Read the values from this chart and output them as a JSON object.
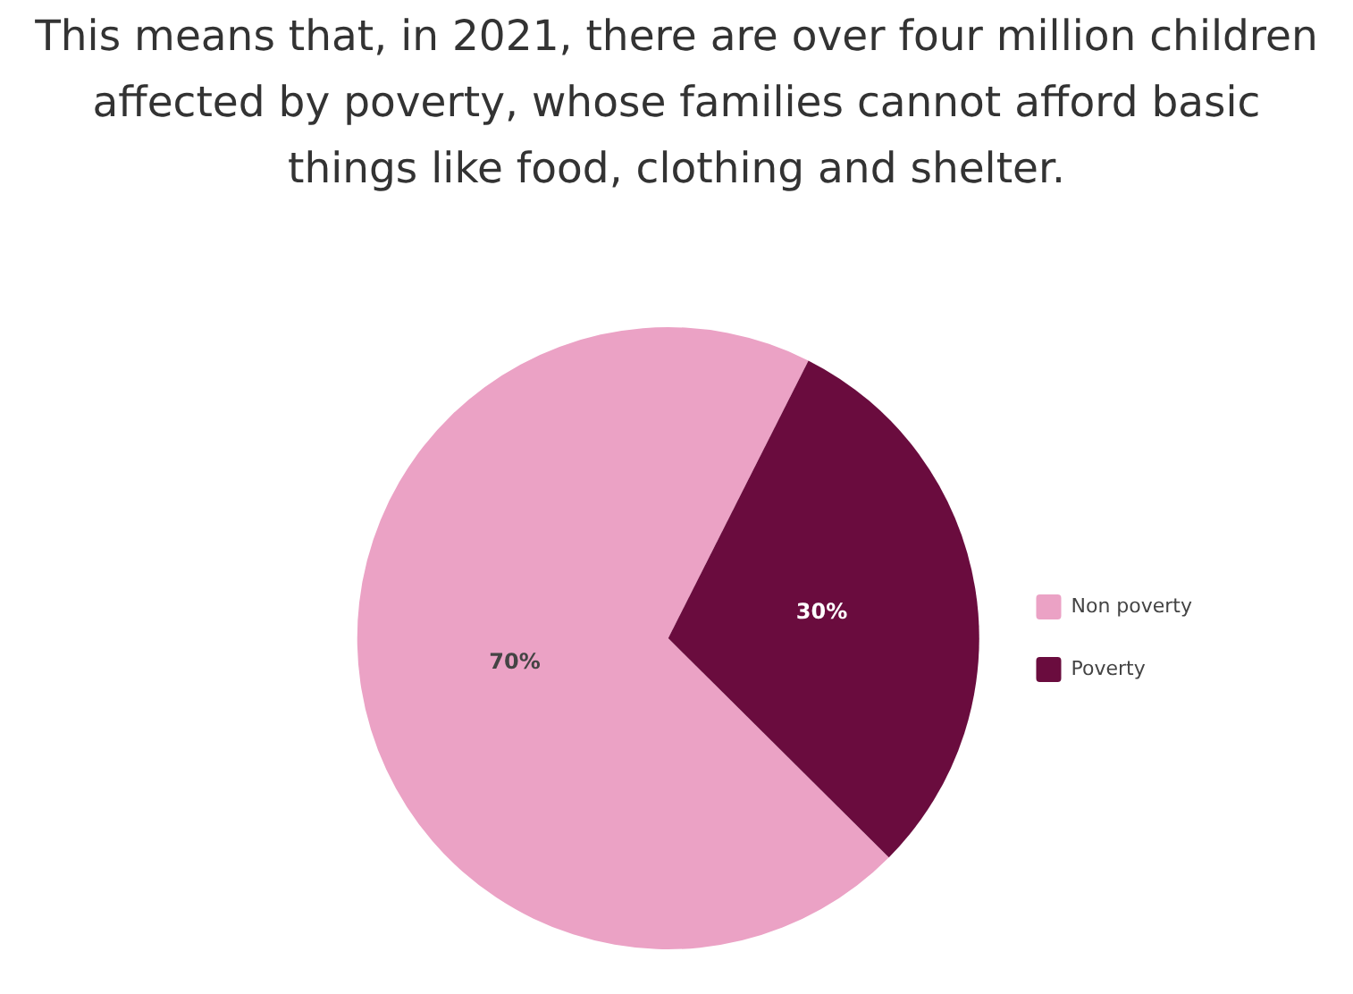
{
  "chart_data": {
    "type": "pie",
    "title": "This means that, in 2021, there are over four million children affected by poverty, whose families cannot afford basic things like food, clothing and shelter.",
    "categories": [
      "Non poverty",
      "Poverty"
    ],
    "values": [
      70,
      30
    ],
    "colors": [
      "#eba2c5",
      "#6a0c3e"
    ],
    "value_labels": [
      "70%",
      "30%"
    ],
    "legend": "right"
  }
}
